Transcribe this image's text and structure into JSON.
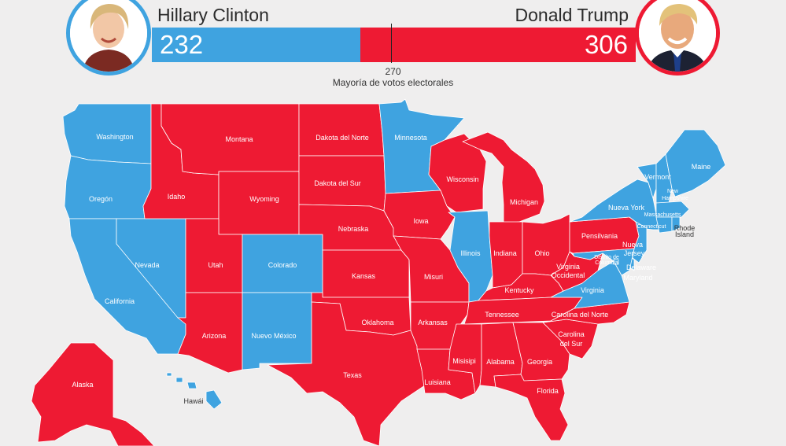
{
  "colors": {
    "democrat": "#3fa3e0",
    "republican": "#ee1a33",
    "background": "#efeeee"
  },
  "header": {
    "left": {
      "name": "Hillary Clinton",
      "votes": "232",
      "portrait": "hillary-clinton-photo"
    },
    "right": {
      "name": "Donald Trump",
      "votes": "306",
      "portrait": "donald-trump-photo"
    },
    "majority_number": "270",
    "majority_label": "Mayoría de votos electorales"
  },
  "states": {
    "washington": "Washington",
    "oregon": "Oregón",
    "california": "California",
    "nevada": "Nevada",
    "idaho": "Idaho",
    "montana": "Montana",
    "wyoming": "Wyoming",
    "utah": "Utah",
    "colorado": "Colorado",
    "arizona": "Arizona",
    "new_mexico": "Nuevo México",
    "north_dakota": "Dakota del Norte",
    "south_dakota": "Dakota del Sur",
    "nebraska": "Nebraska",
    "kansas": "Kansas",
    "oklahoma": "Oklahoma",
    "texas": "Texas",
    "minnesota": "Minnesota",
    "iowa": "Iowa",
    "missouri": "Misuri",
    "arkansas": "Arkansas",
    "louisiana": "Luisiana",
    "wisconsin": "Wisconsin",
    "illinois": "Illinois",
    "michigan": "Michigan",
    "indiana": "Indiana",
    "ohio": "Ohio",
    "kentucky": "Kentucky",
    "tennessee": "Tennessee",
    "mississippi": "Misisipi",
    "alabama": "Alabama",
    "georgia": "Georgia",
    "florida": "Florida",
    "south_carolina_1": "Carolina",
    "south_carolina_2": "del Sur",
    "north_carolina": "Carolina del Norte",
    "virginia": "Virginia",
    "west_virginia_1": "Virginia",
    "west_virginia_2": "Occidental",
    "pennsylvania": "Pensilvania",
    "new_york": "Nueva York",
    "new_jersey_1": "Nueva",
    "new_jersey_2": "Jersey",
    "delaware": "Delaware",
    "maryland": "Maryland",
    "dc_1": "Distrito de",
    "dc_2": "Columbia",
    "vermont": "Vermont",
    "new_hampshire_1": "New",
    "new_hampshire_2": "Hampshire",
    "maine": "Maine",
    "massachusetts": "Massachusetts",
    "connecticut": "Connecticut",
    "rhode_island_1": "Rhode",
    "rhode_island_2": "Island",
    "alaska": "Alaska",
    "hawaii": "Hawái"
  },
  "winners": {
    "washington": "D",
    "oregon": "D",
    "california": "D",
    "nevada": "D",
    "colorado": "D",
    "new_mexico": "D",
    "minnesota": "D",
    "illinois": "D",
    "virginia": "D",
    "new_york": "D",
    "new_jersey": "D",
    "maryland": "D",
    "delaware": "D",
    "vermont": "D",
    "new_hampshire": "D",
    "maine": "D",
    "massachusetts": "D",
    "connecticut": "D",
    "rhode_island": "D",
    "hawaii": "D",
    "dc": "D",
    "idaho": "R",
    "montana": "R",
    "wyoming": "R",
    "utah": "R",
    "arizona": "R",
    "north_dakota": "R",
    "south_dakota": "R",
    "nebraska": "R",
    "kansas": "R",
    "oklahoma": "R",
    "texas": "R",
    "iowa": "R",
    "missouri": "R",
    "arkansas": "R",
    "louisiana": "R",
    "wisconsin": "R",
    "michigan": "R",
    "indiana": "R",
    "ohio": "R",
    "kentucky": "R",
    "tennessee": "R",
    "mississippi": "R",
    "alabama": "R",
    "georgia": "R",
    "florida": "R",
    "south_carolina": "R",
    "north_carolina": "R",
    "west_virginia": "R",
    "pennsylvania": "R",
    "alaska": "R"
  }
}
